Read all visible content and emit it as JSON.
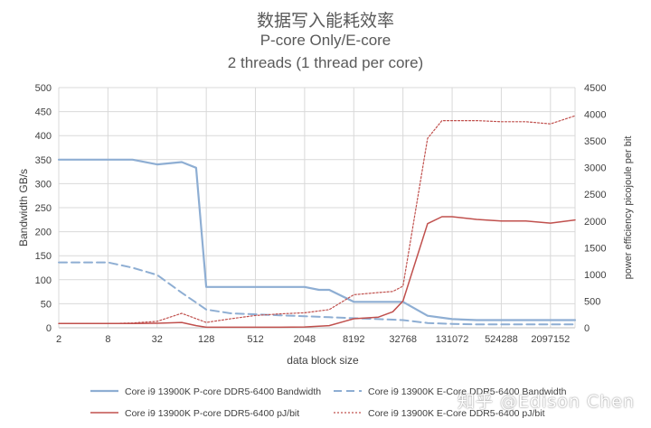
{
  "watermark": "知乎 @Edison Chen",
  "chart_data": {
    "type": "line",
    "title": "数据写入能耗效率",
    "subtitle": "P-core Only/E-core",
    "subtitle2": "2 threads (1 thread per core)",
    "xlabel": "data block size",
    "ylabel": "Bandwidth GB/s",
    "y2label": "power efficiency picojoule per bit",
    "x_scale": "log2",
    "x_ticks": [
      2,
      8,
      32,
      128,
      512,
      2048,
      8192,
      32768,
      131072,
      524288,
      2097152
    ],
    "x_tick_labels": [
      "2",
      "8",
      "32",
      "128",
      "512",
      "2048",
      "8192",
      "32768",
      "131072",
      "524288",
      "2097152"
    ],
    "ylim": [
      0,
      500
    ],
    "y_ticks": [
      0,
      50,
      100,
      150,
      200,
      250,
      300,
      350,
      400,
      450,
      500
    ],
    "y2lim": [
      0,
      4500
    ],
    "y2_ticks": [
      0,
      500,
      1000,
      1500,
      2000,
      2500,
      3000,
      3500,
      4000,
      4500
    ],
    "grid": true,
    "legend_position": "bottom",
    "series": [
      {
        "name": "Core i9 13900K P-core DDR5-6400 Bandwidth",
        "axis": "left",
        "color": "#8eaed3",
        "style": "solid",
        "width": 2.2,
        "x": [
          2,
          4,
          8,
          16,
          32,
          64,
          96,
          128,
          256,
          512,
          1024,
          2048,
          3072,
          4096,
          8192,
          16384,
          32768,
          65536,
          131072,
          262144,
          524288,
          1048576,
          2097152,
          4194304
        ],
        "y": [
          350,
          350,
          350,
          350,
          340,
          345,
          333,
          85,
          85,
          85,
          85,
          85,
          79,
          79,
          54,
          54,
          54,
          25,
          18,
          16,
          16,
          16,
          16,
          16
        ]
      },
      {
        "name": "Core i9 13900K E-Core DDR5-6400 Bandwidth",
        "axis": "left",
        "color": "#8eaed3",
        "style": "dash",
        "width": 2,
        "x": [
          2,
          4,
          8,
          16,
          32,
          64,
          128,
          256,
          512,
          1024,
          2048,
          4096,
          8192,
          16384,
          32768,
          65536,
          131072,
          262144,
          524288,
          1048576,
          2097152,
          4194304
        ],
        "y": [
          136,
          136,
          136,
          125,
          110,
          73,
          38,
          30,
          28,
          26,
          24,
          22,
          20,
          18,
          16,
          10,
          8,
          7,
          7,
          7,
          7,
          7
        ]
      },
      {
        "name": "Core i9 13900K P-core DDR5-6400 pJ/bit",
        "axis": "right",
        "color": "#c0504d",
        "style": "solid",
        "width": 1.5,
        "x": [
          2,
          4,
          8,
          16,
          32,
          64,
          96,
          128,
          256,
          512,
          1024,
          2048,
          4096,
          8192,
          16384,
          24576,
          32768,
          65536,
          98304,
          131072,
          262144,
          524288,
          1048576,
          2097152,
          4194304
        ],
        "y": [
          80,
          80,
          80,
          80,
          85,
          100,
          40,
          10,
          10,
          10,
          10,
          15,
          40,
          170,
          200,
          300,
          500,
          1950,
          2080,
          2080,
          2030,
          2000,
          2000,
          1960,
          2020
        ]
      },
      {
        "name": "Core i9 13900K E-Core DDR5-6400 pJ/bit",
        "axis": "right",
        "color": "#c0504d",
        "style": "dot",
        "width": 1.2,
        "x": [
          2,
          4,
          8,
          16,
          32,
          64,
          128,
          256,
          512,
          1024,
          2048,
          4096,
          8192,
          16384,
          24576,
          32768,
          65536,
          98304,
          131072,
          262144,
          524288,
          1048576,
          2097152,
          4194304
        ],
        "y": [
          80,
          80,
          80,
          90,
          120,
          270,
          100,
          170,
          230,
          260,
          280,
          340,
          620,
          660,
          680,
          780,
          3550,
          3880,
          3880,
          3880,
          3860,
          3860,
          3820,
          3970
        ]
      }
    ],
    "legend_labels": [
      "Core i9 13900K P-core DDR5-6400 Bandwidth",
      "Core i9 13900K E-Core DDR5-6400 Bandwidth",
      "Core i9 13900K P-core DDR5-6400 pJ/bit",
      "Core i9 13900K E-Core DDR5-6400 pJ/bit"
    ]
  }
}
